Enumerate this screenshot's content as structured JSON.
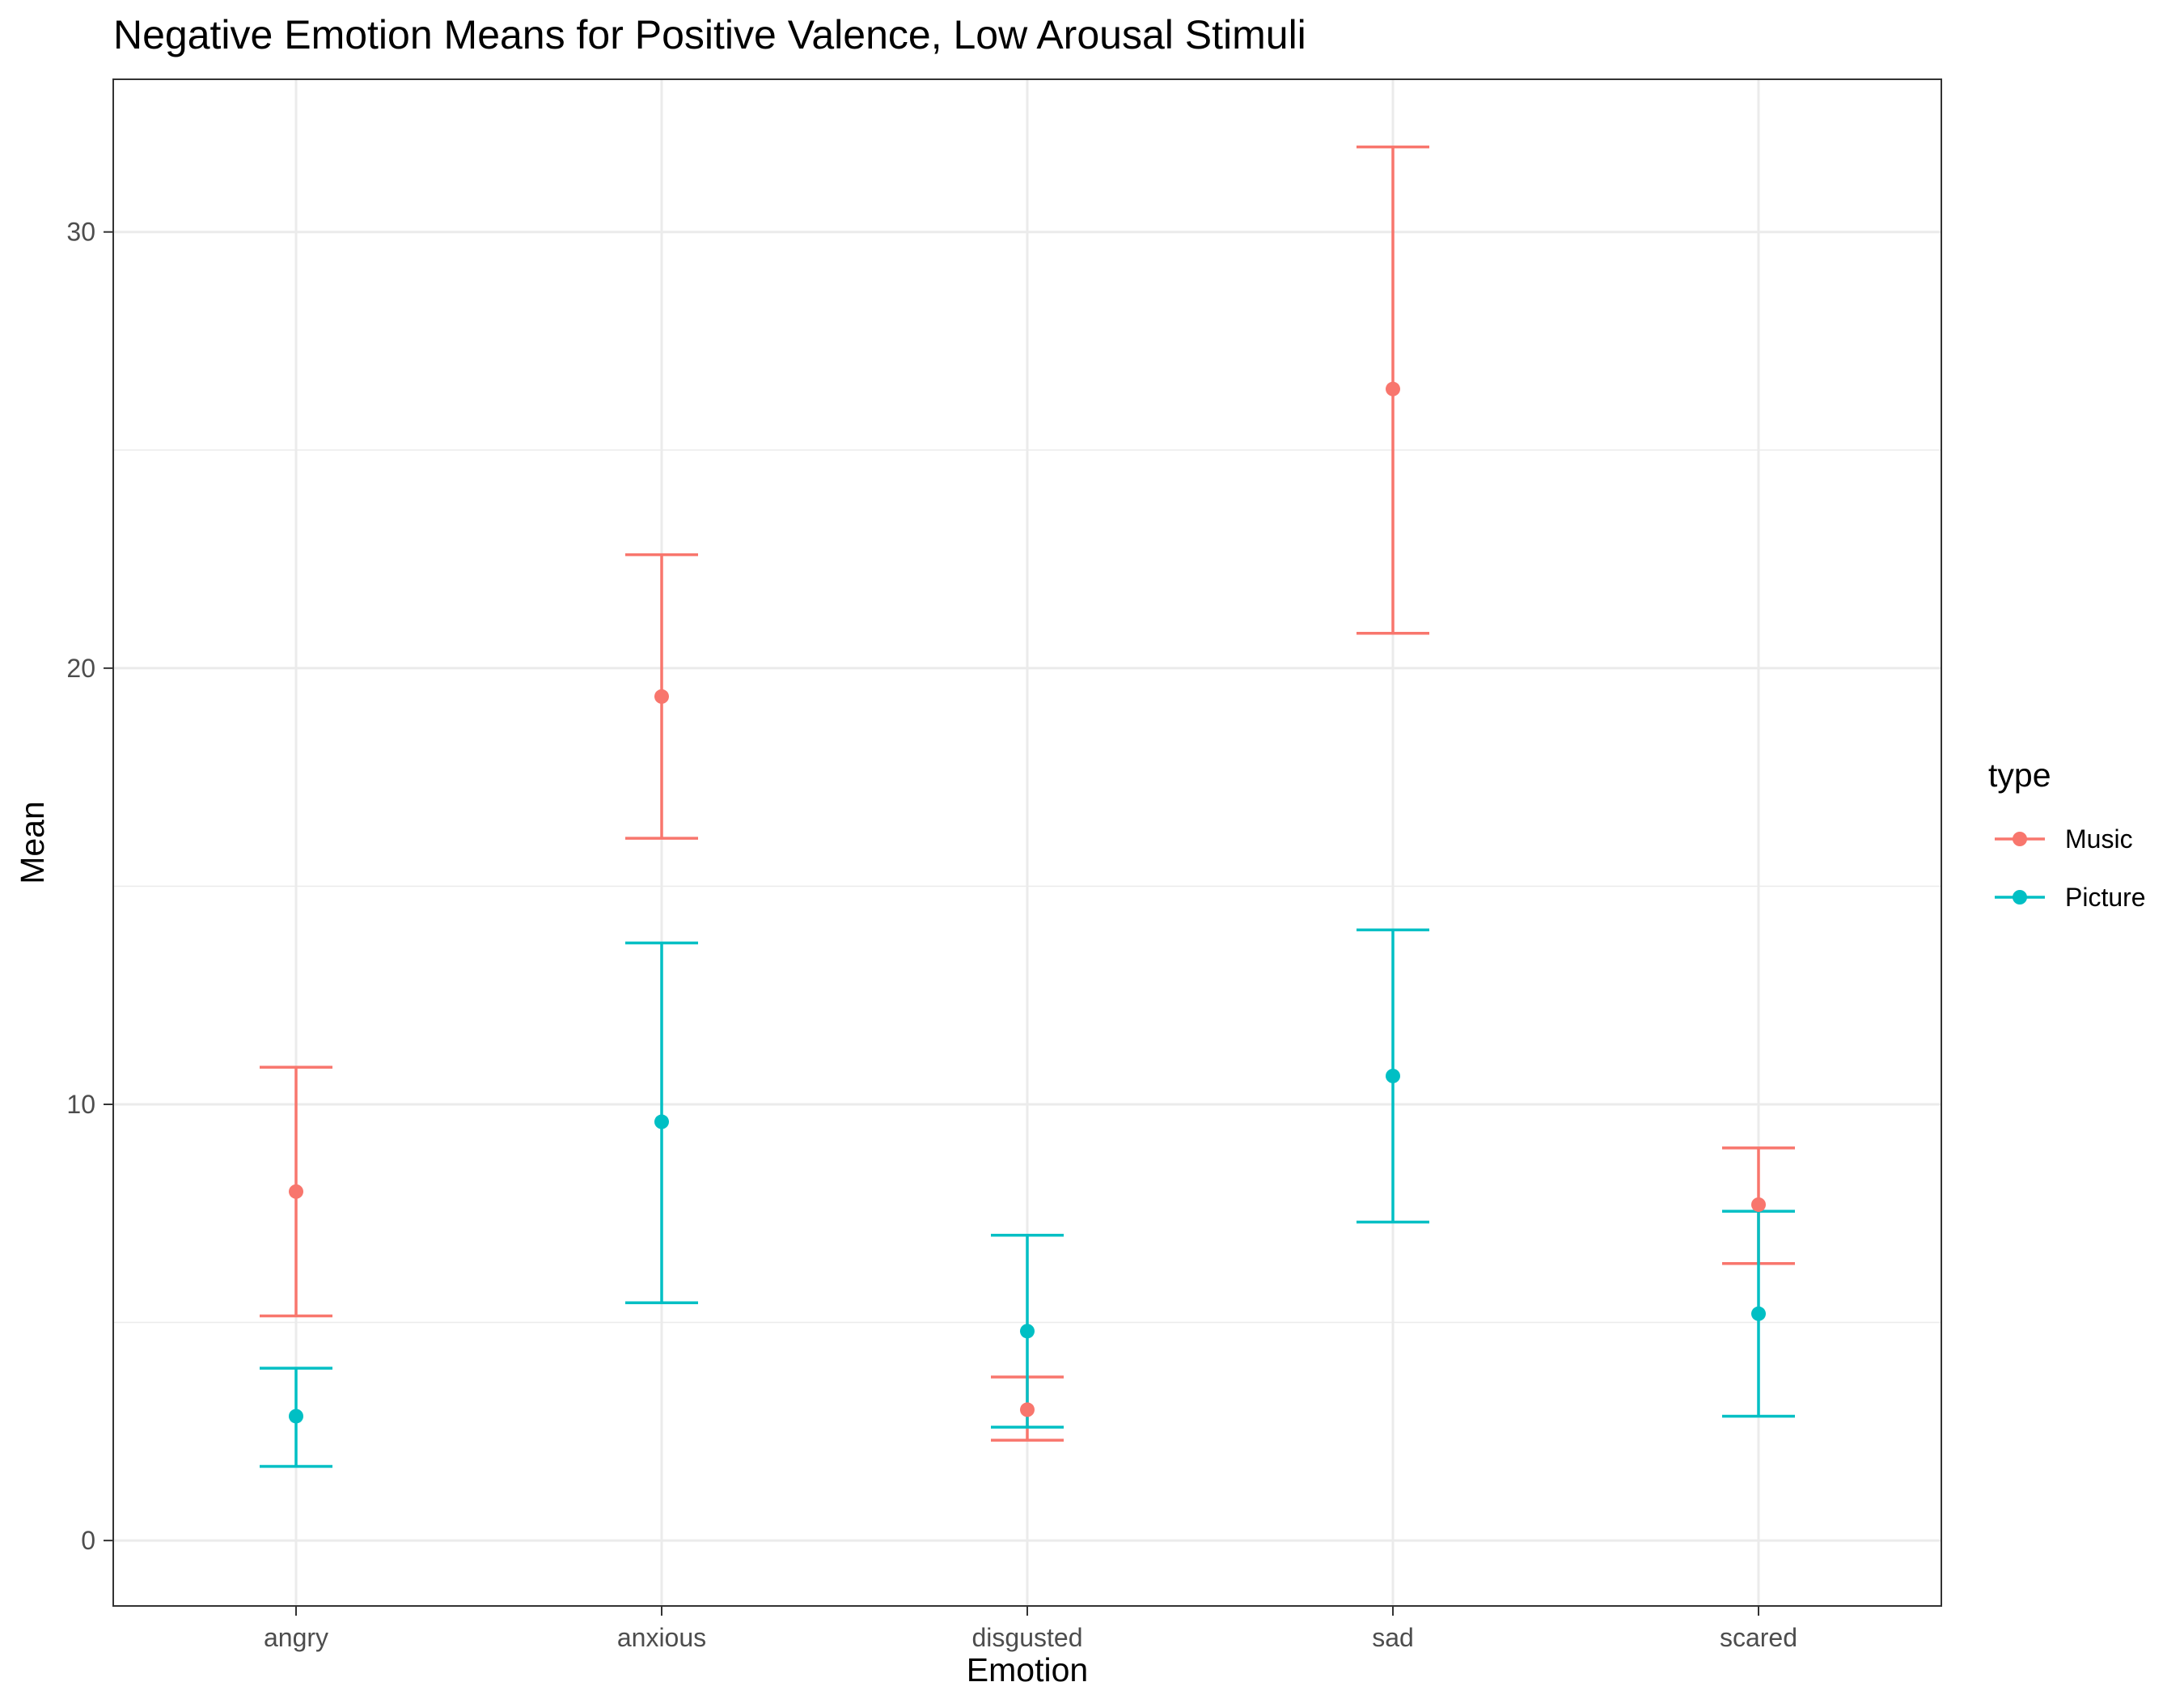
{
  "chart_data": {
    "type": "scatter",
    "title": "Negative Emotion Means for Positive Valence, Low Arousal Stimuli",
    "xlabel": "Emotion",
    "ylabel": "Mean",
    "categories": [
      "angry",
      "anxious",
      "disgusted",
      "sad",
      "scared"
    ],
    "ylim": [
      -1.5,
      33.5
    ],
    "yticks": [
      0,
      10,
      20,
      30
    ],
    "grid": true,
    "legend": {
      "title": "type",
      "position": "right"
    },
    "series": [
      {
        "name": "Music",
        "color": "#F8766D",
        "values": [
          8.0,
          19.35,
          3.0,
          26.4,
          7.7
        ],
        "lower": [
          5.15,
          16.1,
          2.3,
          20.8,
          6.35
        ],
        "upper": [
          10.85,
          22.6,
          3.75,
          31.95,
          9.0
        ]
      },
      {
        "name": "Picture",
        "color": "#00BFC4",
        "values": [
          2.85,
          9.6,
          4.8,
          10.65,
          5.2
        ],
        "lower": [
          1.7,
          5.45,
          2.6,
          7.3,
          2.85
        ],
        "upper": [
          3.95,
          13.7,
          7.0,
          14.0,
          7.55
        ]
      }
    ]
  }
}
